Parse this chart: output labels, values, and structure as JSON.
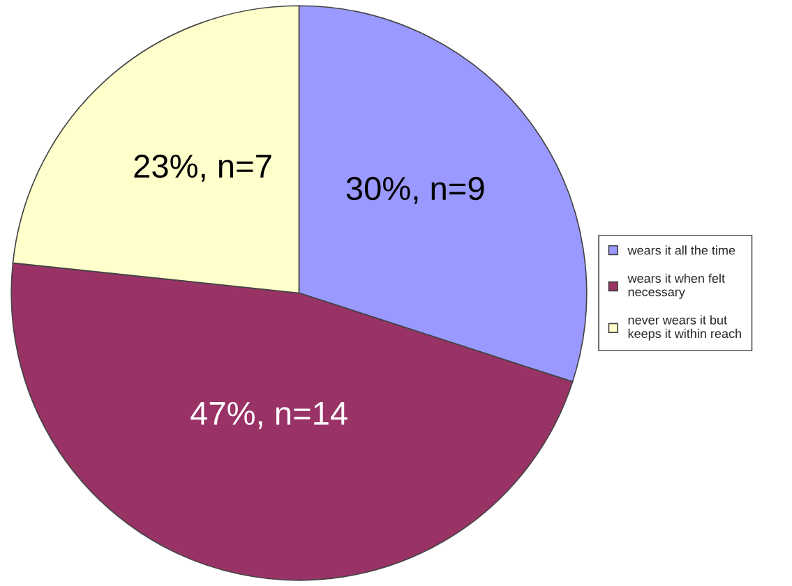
{
  "chart_data": {
    "type": "pie",
    "categories": [
      "wears it all the time",
      "wears it when felt\nnecessary",
      "never wears it but\nkeeps it within reach"
    ],
    "values": [
      9,
      14,
      7
    ],
    "value_labels": [
      "30%, n=9",
      "47%, n=14",
      "23%, n=7"
    ],
    "colors": [
      "#9999ff",
      "#993366",
      "#ffffcc"
    ],
    "legend": "right"
  }
}
